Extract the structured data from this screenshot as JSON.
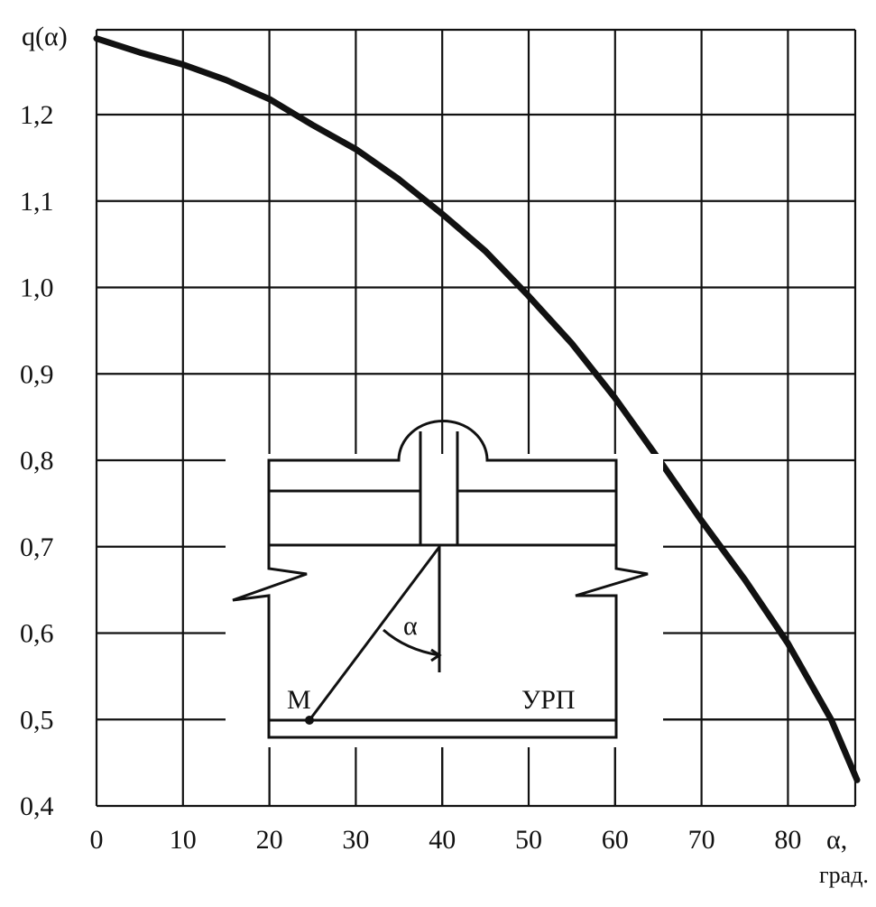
{
  "chart_data": {
    "type": "line",
    "title": "",
    "ylabel": "q(α)",
    "xlabel_main": "α,",
    "xlabel_unit": "град.",
    "xlim": [
      0,
      88
    ],
    "ylim": [
      0.4,
      1.3
    ],
    "x_ticks": [
      0,
      10,
      20,
      30,
      40,
      50,
      60,
      70,
      80
    ],
    "x_tick_labels": [
      "0",
      "10",
      "20",
      "30",
      "40",
      "50",
      "60",
      "70",
      "80"
    ],
    "y_ticks": [
      0.4,
      0.5,
      0.6,
      0.7,
      0.8,
      0.9,
      1.0,
      1.1,
      1.2
    ],
    "y_tick_labels": [
      "0,4",
      "0,5",
      "0,6",
      "0,7",
      "0,8",
      "0,9",
      "1,0",
      "1,1",
      "1,2"
    ],
    "grid": true,
    "series": [
      {
        "x": [
          0,
          5,
          10,
          15,
          20,
          23,
          25,
          30,
          35,
          40,
          45,
          50,
          55,
          60,
          65,
          70,
          75,
          80,
          85,
          88
        ],
        "y": [
          1.288,
          1.272,
          1.258,
          1.24,
          1.218,
          1.2,
          1.188,
          1.16,
          1.125,
          1.085,
          1.042,
          0.99,
          0.935,
          0.872,
          0.802,
          0.73,
          0.662,
          0.588,
          0.5,
          0.43
        ]
      }
    ],
    "inset": {
      "label_point": "M",
      "label_angle": "α",
      "label_plane": "УРП"
    }
  }
}
